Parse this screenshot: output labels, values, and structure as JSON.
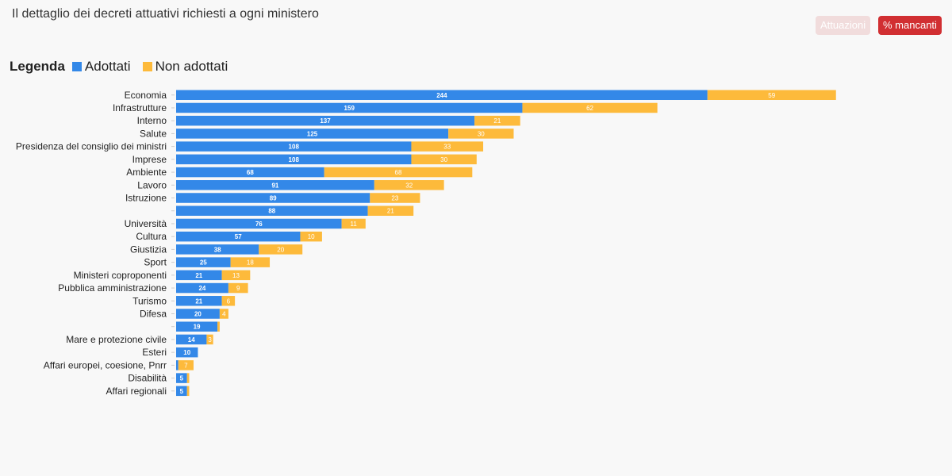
{
  "page": {
    "title": "Il dettaglio dei decreti attuativi richiesti a ogni ministero",
    "buttons": {
      "attuazioni": "Attuazioni",
      "mancanti": "% mancanti"
    },
    "legend": {
      "title": "Legenda",
      "adottati": "Adottati",
      "non_adottati": "Non adottati"
    }
  },
  "colors": {
    "adottati": "#3388e8",
    "non_adottati": "#fdba3b"
  },
  "chart_data": {
    "type": "bar",
    "orientation": "horizontal",
    "stacked": true,
    "grid": false,
    "legend_position": "top-left",
    "categories": [
      "Economia",
      "Infrastrutture",
      "Interno",
      "Salute",
      "Presidenza del consiglio dei ministri",
      "Imprese",
      "Ambiente",
      "Lavoro",
      "Istruzione",
      "",
      "Università",
      "Cultura",
      "Giustizia",
      "Sport",
      "Ministeri coproponenti",
      "Pubblica amministrazione",
      "Turismo",
      "Difesa",
      "",
      "Mare e protezione civile",
      "Esteri",
      "Affari europei, coesione, Pnrr",
      "Disabilità",
      "Affari regionali"
    ],
    "series": [
      {
        "name": "Adottati",
        "values": [
          244,
          159,
          137,
          125,
          108,
          108,
          68,
          91,
          89,
          88,
          76,
          57,
          38,
          25,
          21,
          24,
          21,
          20,
          19,
          14,
          10,
          1,
          5,
          5
        ],
        "labels": [
          "244",
          "159",
          "137",
          "125",
          "108",
          "108",
          "68",
          "91",
          "89",
          "88",
          "76",
          "57",
          "38",
          "25",
          "21",
          "24",
          "21",
          "20",
          "19",
          "14",
          "10",
          "",
          "5",
          "5"
        ]
      },
      {
        "name": "Non adottati",
        "values": [
          59,
          62,
          21,
          30,
          33,
          30,
          68,
          32,
          23,
          21,
          11,
          10,
          20,
          18,
          13,
          9,
          6,
          4,
          1,
          3,
          0,
          7,
          1,
          1
        ],
        "labels": [
          "59",
          "62",
          "21",
          "30",
          "33",
          "30",
          "68",
          "32",
          "23",
          "21",
          "11",
          "10",
          "20",
          "18",
          "13",
          "9",
          "6",
          "4",
          "",
          "3",
          "",
          "7",
          "",
          ""
        ]
      }
    ]
  }
}
